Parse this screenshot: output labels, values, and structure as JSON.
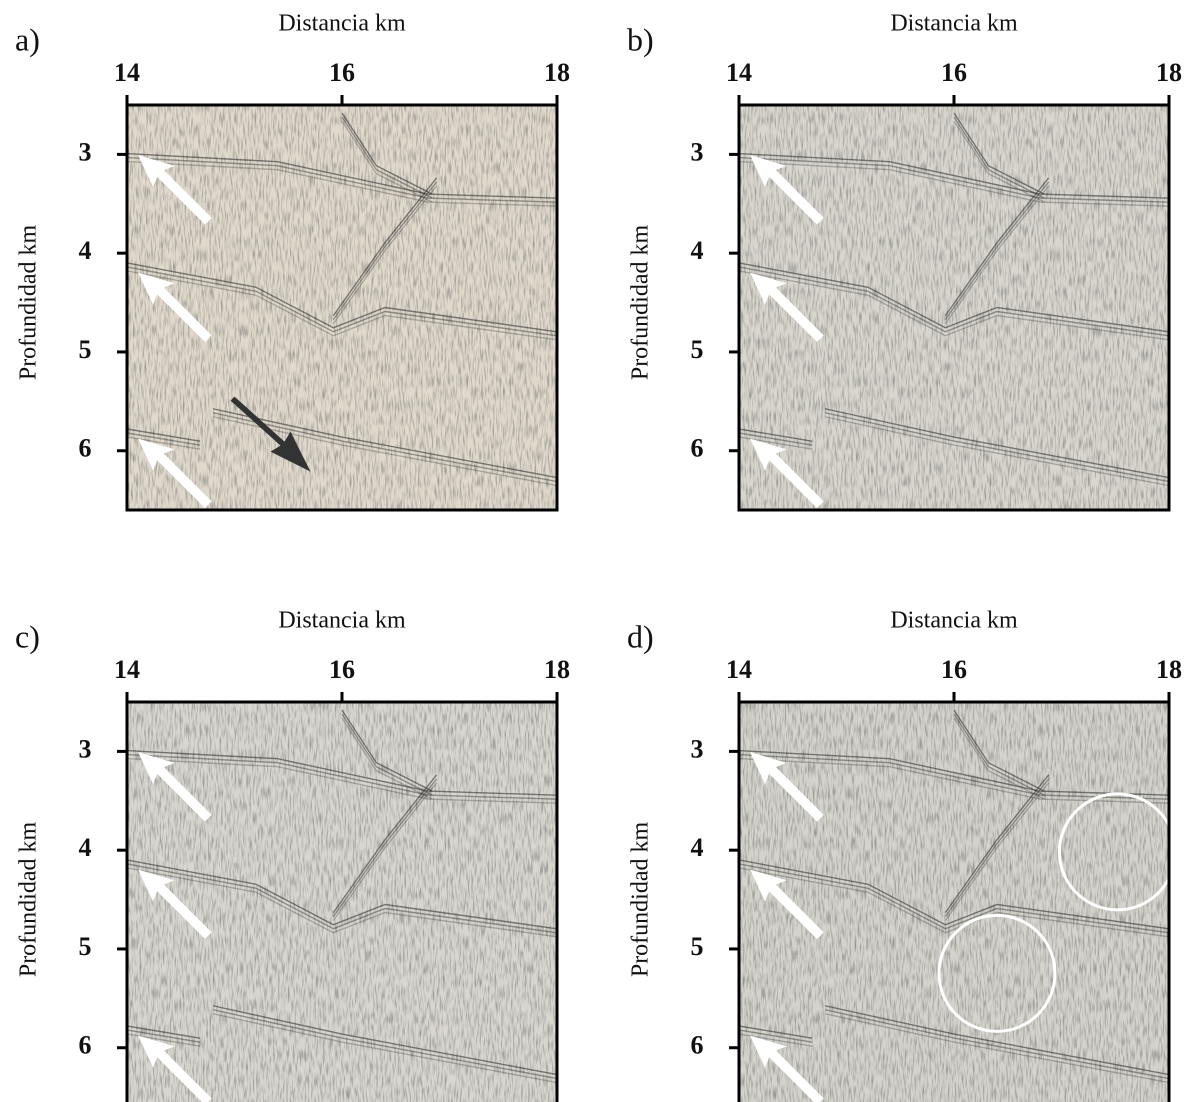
{
  "chart_data": [
    {
      "type": "image",
      "label": "a)",
      "xlabel": "Distancia km",
      "ylabel": "Profundidad km",
      "xlim": [
        14,
        18
      ],
      "xticks": [
        14,
        16,
        18
      ],
      "ylim": [
        6.6,
        2.5
      ],
      "yticks": [
        3,
        4,
        5,
        6
      ],
      "color": "#e0d9cc"
    },
    {
      "type": "image",
      "label": "b)",
      "xlabel": "Distancia km",
      "ylabel": "Profundidad km",
      "xlim": [
        14,
        18
      ],
      "xticks": [
        14,
        16,
        18
      ],
      "ylim": [
        6.6,
        2.5
      ],
      "yticks": [
        3,
        4,
        5,
        6
      ],
      "color": "#d9d6ce"
    },
    {
      "type": "image",
      "label": "c)",
      "xlabel": "Distancia km",
      "ylabel": "Profundidad km",
      "xlim": [
        14,
        18
      ],
      "xticks": [
        14,
        16,
        18
      ],
      "ylim": [
        6.6,
        2.5
      ],
      "yticks": [
        3,
        4,
        5,
        6
      ],
      "color": "#d8d6cf"
    },
    {
      "type": "image",
      "label": "d)",
      "xlabel": "Distancia km",
      "ylabel": "Profundidad km",
      "xlim": [
        14,
        18
      ],
      "xticks": [
        14,
        16,
        18
      ],
      "ylim": [
        6.6,
        2.5
      ],
      "yticks": [
        3,
        4,
        5,
        6
      ],
      "color": "#d4d3cc"
    }
  ]
}
